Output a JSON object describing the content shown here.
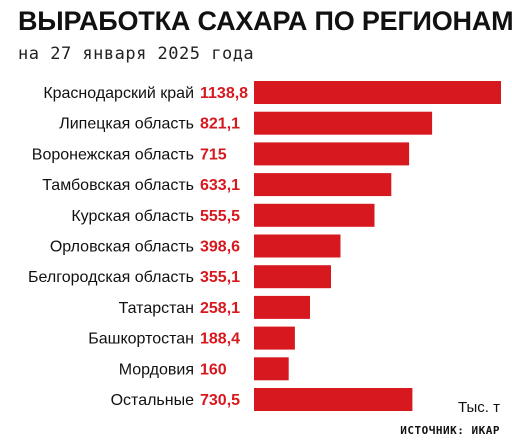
{
  "header": {
    "title": "ВЫРАБОТКА САХАРА ПО РЕГИОНАМ",
    "subtitle": "на 27 января 2025 года"
  },
  "footer": {
    "unit": "Тыс. т",
    "source": "ИСТОЧНИК: ИКАР"
  },
  "colors": {
    "bar": "#d7191f",
    "value_text": "#d7191f"
  },
  "chart_data": {
    "type": "bar",
    "orientation": "horizontal",
    "title": "ВЫРАБОТКА САХАРА ПО РЕГИОНАМ",
    "subtitle": "на 27 января 2025 года",
    "unit": "Тыс. т",
    "grid": false,
    "categories": [
      "Краснодарский край",
      "Липецкая область",
      "Воронежская область",
      "Тамбовская область",
      "Курская область",
      "Орловская область",
      "Белгородская область",
      "Татарстан",
      "Башкортостан",
      "Мордовия",
      "Остальные"
    ],
    "values": [
      1138.8,
      821.1,
      715,
      633.1,
      555.5,
      398.6,
      355.1,
      258.1,
      188.4,
      160,
      730.5
    ],
    "value_labels": [
      "1138,8",
      "821,1",
      "715",
      "633,1",
      "555,5",
      "398,6",
      "355,1",
      "258,1",
      "188,4",
      "160",
      "730,5"
    ],
    "xlim": [
      0,
      1138.8
    ]
  }
}
